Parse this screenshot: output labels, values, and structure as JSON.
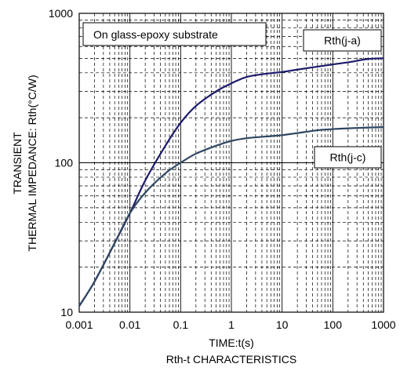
{
  "chart_data": {
    "type": "line",
    "title": "Rth-t CHARACTERISTICS",
    "xlabel": "TIME:t(s)",
    "ylabel_line1": "TRANSIENT",
    "ylabel_line2": "THERMAL IMPEDANCE: Rth(°C/W)",
    "x_scale": "log",
    "y_scale": "log",
    "xlim": [
      0.001,
      1000
    ],
    "ylim": [
      10,
      1000
    ],
    "x_ticks": [
      {
        "value": 0.001,
        "label": "0.001"
      },
      {
        "value": 0.01,
        "label": "0.01"
      },
      {
        "value": 0.1,
        "label": "0.1"
      },
      {
        "value": 1,
        "label": "1"
      },
      {
        "value": 10,
        "label": "10"
      },
      {
        "value": 100,
        "label": "100"
      },
      {
        "value": 1000,
        "label": "1000"
      }
    ],
    "y_ticks": [
      {
        "value": 10,
        "label": "10"
      },
      {
        "value": 100,
        "label": "100"
      },
      {
        "value": 1000,
        "label": "1000"
      }
    ],
    "grid": true,
    "annotation": "On glass-epoxy substrate",
    "series": [
      {
        "name": "Rth(j-a)",
        "color": "#1b1b6b",
        "x": [
          0.001,
          0.002,
          0.005,
          0.01,
          0.02,
          0.05,
          0.1,
          0.2,
          0.5,
          1,
          2,
          5,
          10,
          20,
          50,
          100,
          200,
          500,
          1000
        ],
        "y": [
          11,
          16,
          29,
          46,
          76,
          130,
          185,
          240,
          300,
          340,
          375,
          395,
          405,
          420,
          440,
          455,
          470,
          495,
          500
        ]
      },
      {
        "name": "Rth(j-c)",
        "color": "#2e4663",
        "x": [
          0.001,
          0.002,
          0.005,
          0.01,
          0.02,
          0.05,
          0.1,
          0.2,
          0.5,
          1,
          2,
          5,
          10,
          20,
          50,
          100,
          200,
          500,
          1000
        ],
        "y": [
          11,
          16,
          29,
          46,
          63,
          85,
          100,
          115,
          130,
          140,
          146,
          150,
          153,
          158,
          165,
          168,
          170,
          172,
          173
        ]
      }
    ]
  }
}
